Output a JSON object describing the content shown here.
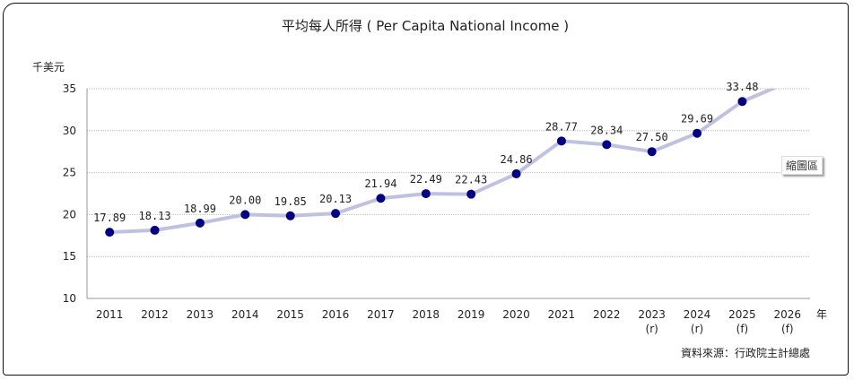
{
  "chart_data": {
    "type": "line",
    "title": "平均每人所得 ( Per Capita National Income )",
    "ylabel": "千美元",
    "xlabel": "年",
    "source": "資料來源：行政院主計總處",
    "ylim": [
      10,
      35
    ],
    "yticks": [
      10,
      15,
      20,
      25,
      30,
      35
    ],
    "grid": true,
    "categories": [
      "2011",
      "2012",
      "2013",
      "2014",
      "2015",
      "2016",
      "2017",
      "2018",
      "2019",
      "2020",
      "2021",
      "2022",
      "2023",
      "2024",
      "2025",
      "2026"
    ],
    "category_notes": [
      "",
      "",
      "",
      "",
      "",
      "",
      "",
      "",
      "",
      "",
      "",
      "",
      "(r)",
      "(r)",
      "(f)",
      "(f)"
    ],
    "values": [
      17.89,
      18.13,
      18.99,
      20.0,
      19.85,
      20.13,
      21.94,
      22.49,
      22.43,
      24.86,
      28.77,
      28.34,
      27.5,
      29.69,
      33.48,
      null
    ],
    "labels": [
      "17.89",
      "18.13",
      "18.99",
      "20.00",
      "19.85",
      "20.13",
      "21.94",
      "22.49",
      "22.43",
      "24.86",
      "28.77",
      "28.34",
      "27.50",
      "29.69",
      "33.48",
      ""
    ],
    "line_color": "#c0c0e0",
    "marker_color": "#000080"
  },
  "ui": {
    "zoom_button": "縮圖區"
  }
}
